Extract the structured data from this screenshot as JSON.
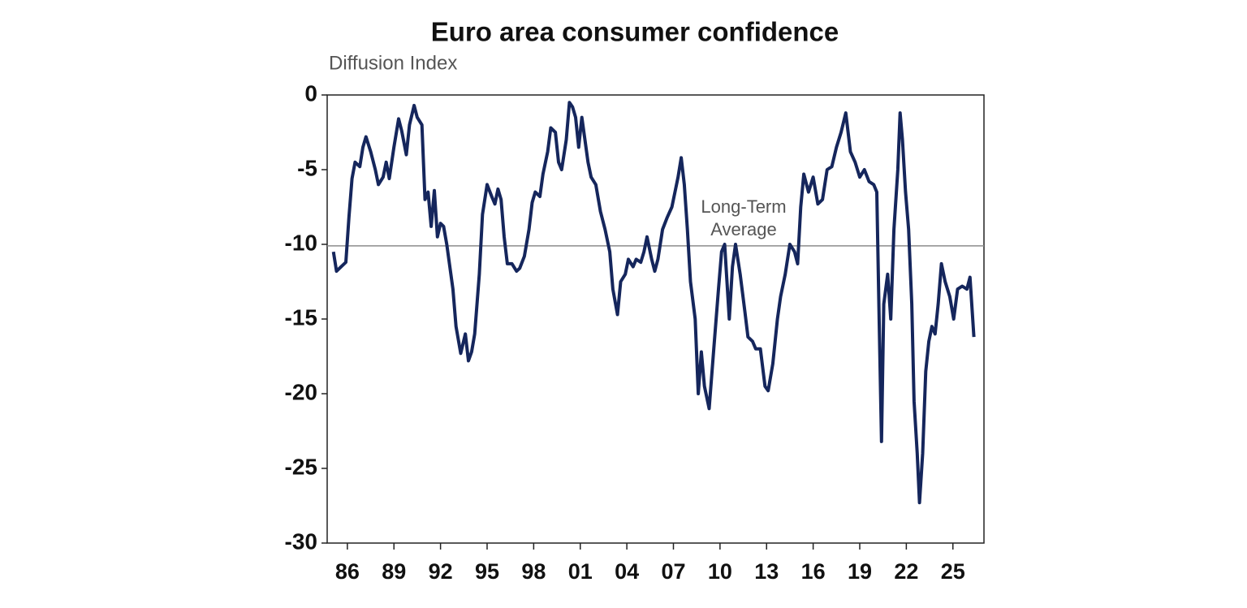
{
  "chart_data": {
    "type": "line",
    "title": "Euro area consumer confidence",
    "y_label": "Diffusion Index",
    "reference_line": {
      "value": -10.1,
      "label": [
        "Long-Term",
        "Average"
      ],
      "color": "#8c8c8c"
    },
    "xlim": [
      1984.7,
      2027
    ],
    "ylim": [
      -30,
      0
    ],
    "yticks": [
      0,
      -5,
      -10,
      -15,
      -20,
      -25,
      -30
    ],
    "xticks": [
      {
        "value": 1986,
        "label": "86"
      },
      {
        "value": 1989,
        "label": "89"
      },
      {
        "value": 1992,
        "label": "92"
      },
      {
        "value": 1995,
        "label": "95"
      },
      {
        "value": 1998,
        "label": "98"
      },
      {
        "value": 2001,
        "label": "01"
      },
      {
        "value": 2004,
        "label": "04"
      },
      {
        "value": 2007,
        "label": "07"
      },
      {
        "value": 2010,
        "label": "10"
      },
      {
        "value": 2013,
        "label": "13"
      },
      {
        "value": 2016,
        "label": "16"
      },
      {
        "value": 2019,
        "label": "19"
      },
      {
        "value": 2022,
        "label": "22"
      },
      {
        "value": 2025,
        "label": "25"
      }
    ],
    "series": [
      {
        "name": "Euro area consumer confidence",
        "color": "#15265c",
        "x": [
          1985.1,
          1985.3,
          1985.6,
          1985.9,
          1986.1,
          1986.3,
          1986.5,
          1986.8,
          1987.0,
          1987.2,
          1987.5,
          1987.8,
          1988.0,
          1988.3,
          1988.5,
          1988.7,
          1989.0,
          1989.3,
          1989.5,
          1989.8,
          1990.0,
          1990.3,
          1990.5,
          1990.8,
          1991.0,
          1991.2,
          1991.4,
          1991.6,
          1991.8,
          1992.0,
          1992.2,
          1992.4,
          1992.6,
          1992.8,
          1993.0,
          1993.3,
          1993.6,
          1993.8,
          1994.0,
          1994.2,
          1994.5,
          1994.7,
          1995.0,
          1995.3,
          1995.5,
          1995.7,
          1995.9,
          1996.1,
          1996.3,
          1996.6,
          1996.9,
          1997.1,
          1997.4,
          1997.7,
          1997.9,
          1998.1,
          1998.4,
          1998.6,
          1998.9,
          1999.1,
          1999.4,
          1999.6,
          1999.8,
          2000.1,
          2000.3,
          2000.5,
          2000.7,
          2000.9,
          2001.1,
          2001.3,
          2001.5,
          2001.7,
          2002.0,
          2002.3,
          2002.6,
          2002.9,
          2003.1,
          2003.4,
          2003.6,
          2003.9,
          2004.1,
          2004.4,
          2004.6,
          2004.9,
          2005.1,
          2005.3,
          2005.6,
          2005.8,
          2006.0,
          2006.3,
          2006.6,
          2006.9,
          2007.1,
          2007.3,
          2007.5,
          2007.7,
          2007.9,
          2008.1,
          2008.4,
          2008.6,
          2008.8,
          2009.0,
          2009.3,
          2009.6,
          2009.9,
          2010.1,
          2010.3,
          2010.6,
          2010.8,
          2011.0,
          2011.3,
          2011.6,
          2011.8,
          2012.1,
          2012.3,
          2012.6,
          2012.9,
          2013.1,
          2013.4,
          2013.7,
          2013.9,
          2014.2,
          2014.5,
          2014.8,
          2015.0,
          2015.2,
          2015.4,
          2015.7,
          2016.0,
          2016.3,
          2016.6,
          2016.9,
          2017.2,
          2017.5,
          2017.8,
          2018.1,
          2018.4,
          2018.7,
          2019.0,
          2019.3,
          2019.6,
          2019.9,
          2020.1,
          2020.25,
          2020.4,
          2020.55,
          2020.8,
          2021.0,
          2021.2,
          2021.45,
          2021.6,
          2021.75,
          2021.95,
          2022.15,
          2022.35,
          2022.5,
          2022.7,
          2022.85,
          2023.05,
          2023.25,
          2023.45,
          2023.65,
          2023.85,
          2024.05,
          2024.26,
          2024.5,
          2024.8,
          2025.05,
          2025.3,
          2025.6,
          2025.9,
          2026.1,
          2026.35
        ],
        "values": [
          -10.5,
          -11.8,
          -11.5,
          -11.2,
          -8.2,
          -5.6,
          -4.5,
          -4.8,
          -3.5,
          -2.8,
          -3.8,
          -5.0,
          -6.0,
          -5.5,
          -4.5,
          -5.6,
          -3.5,
          -1.6,
          -2.4,
          -4.0,
          -2.0,
          -0.7,
          -1.5,
          -2.0,
          -7.0,
          -6.5,
          -8.8,
          -6.4,
          -9.5,
          -8.6,
          -8.8,
          -10.0,
          -11.5,
          -13.0,
          -15.5,
          -17.3,
          -16.0,
          -17.8,
          -17.2,
          -16.0,
          -12.0,
          -8.0,
          -6.0,
          -6.8,
          -7.3,
          -6.3,
          -7.0,
          -9.5,
          -11.3,
          -11.3,
          -11.8,
          -11.6,
          -10.8,
          -9.0,
          -7.2,
          -6.5,
          -6.8,
          -5.3,
          -3.8,
          -2.2,
          -2.5,
          -4.5,
          -5.0,
          -3.0,
          -0.5,
          -0.8,
          -1.5,
          -3.5,
          -1.5,
          -3.0,
          -4.5,
          -5.5,
          -6.0,
          -7.8,
          -9.0,
          -10.5,
          -13.0,
          -14.7,
          -12.5,
          -12.0,
          -11.0,
          -11.5,
          -11.0,
          -11.2,
          -10.5,
          -9.5,
          -11.0,
          -11.8,
          -11.0,
          -9.0,
          -8.2,
          -7.5,
          -6.5,
          -5.5,
          -4.2,
          -6.0,
          -9.0,
          -12.5,
          -15.0,
          -20.0,
          -17.2,
          -19.5,
          -21.0,
          -17.0,
          -13.0,
          -10.5,
          -10.0,
          -15.0,
          -11.5,
          -10.0,
          -12.0,
          -14.5,
          -16.2,
          -16.5,
          -17.0,
          -17.0,
          -19.5,
          -19.8,
          -18.0,
          -15.0,
          -13.5,
          -12.0,
          -10.0,
          -10.5,
          -11.3,
          -7.5,
          -5.3,
          -6.5,
          -5.5,
          -7.3,
          -7.0,
          -5.0,
          -4.8,
          -3.5,
          -2.5,
          -1.2,
          -3.8,
          -4.5,
          -5.5,
          -5.0,
          -5.8,
          -6.0,
          -6.5,
          -15.0,
          -23.2,
          -14.0,
          -12.0,
          -15.0,
          -9.0,
          -5.0,
          -1.2,
          -3.0,
          -6.5,
          -9.0,
          -14.0,
          -20.5,
          -24.0,
          -27.3,
          -24.0,
          -18.5,
          -16.5,
          -15.5,
          -16.0,
          -14.0,
          -11.3,
          -12.5,
          -13.5,
          -15.0,
          -13.0,
          -12.8,
          -13.0,
          -12.2,
          -16.2
        ]
      }
    ]
  }
}
